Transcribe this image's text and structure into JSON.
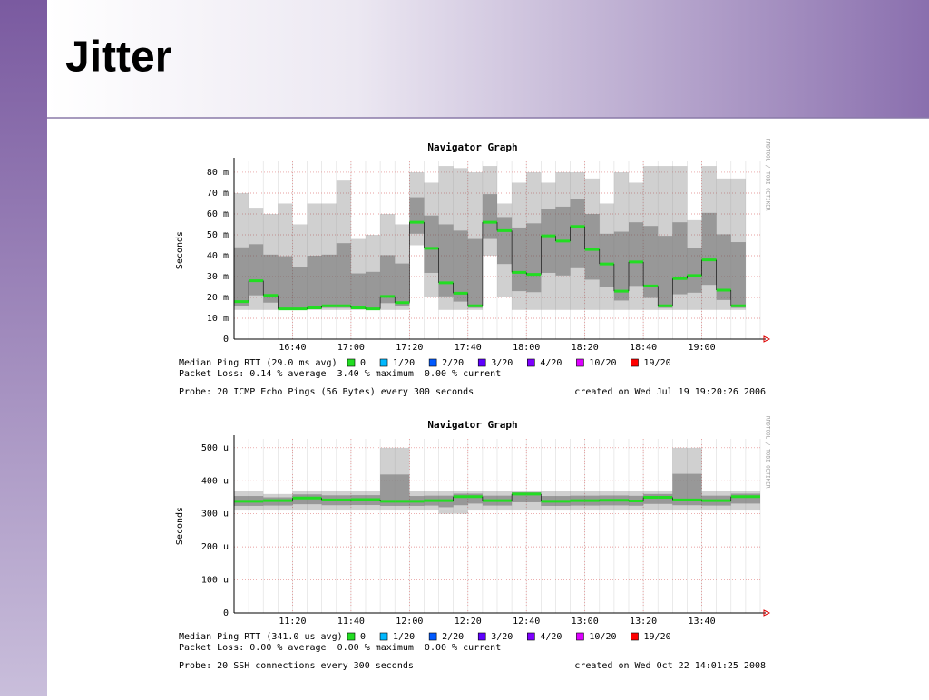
{
  "title": "Jitter",
  "chart_data": [
    {
      "type": "smoke",
      "title": "Navigator Graph",
      "y_label": "Seconds",
      "side_text": "RRDTOOL / TOBI OETIKER",
      "x": [
        "16:20",
        "16:25",
        "16:30",
        "16:35",
        "16:40",
        "16:45",
        "16:50",
        "16:55",
        "17:00",
        "17:05",
        "17:10",
        "17:15",
        "17:20",
        "17:25",
        "17:30",
        "17:35",
        "17:40",
        "17:45",
        "17:50",
        "17:55",
        "18:00",
        "18:05",
        "18:10",
        "18:15",
        "18:20",
        "18:25",
        "18:30",
        "18:35",
        "18:40",
        "18:45",
        "18:50",
        "18:55",
        "19:00",
        "19:05",
        "19:10"
      ],
      "series": [
        {
          "name": "Median Ping RTT (29.0 ms avg)",
          "color": "#22dd22",
          "values": [
            0.018,
            0.028,
            0.021,
            0.0145,
            0.0145,
            0.015,
            0.016,
            0.016,
            0.015,
            0.0145,
            0.0205,
            0.0175,
            0.056,
            0.0435,
            0.027,
            0.022,
            0.016,
            0.056,
            0.052,
            0.032,
            0.031,
            0.0495,
            0.047,
            0.054,
            0.043,
            0.036,
            0.023,
            0.037,
            0.0255,
            0.016,
            0.029,
            0.0305,
            0.038,
            0.0235,
            0.016
          ]
        }
      ],
      "smoke_max": [
        0.07,
        0.063,
        0.06,
        0.065,
        0.055,
        0.065,
        0.065,
        0.076,
        0.048,
        0.05,
        0.06,
        0.055,
        0.08,
        0.075,
        0.083,
        0.082,
        0.08,
        0.083,
        0.065,
        0.075,
        0.08,
        0.075,
        0.08,
        0.08,
        0.077,
        0.065,
        0.08,
        0.075,
        0.083,
        0.083,
        0.083,
        0.057,
        0.083,
        0.077,
        0.077
      ],
      "smoke_min": [
        0.014,
        0.014,
        0.014,
        0.014,
        0.014,
        0.014,
        0.014,
        0.014,
        0.014,
        0.014,
        0.014,
        0.014,
        0.045,
        0.02,
        0.014,
        0.014,
        0.014,
        0.04,
        0.02,
        0.014,
        0.014,
        0.014,
        0.014,
        0.014,
        0.014,
        0.014,
        0.014,
        0.014,
        0.014,
        0.014,
        0.014,
        0.014,
        0.014,
        0.014,
        0.014
      ],
      "xlim": [
        "16:20",
        "19:20"
      ],
      "xticks": [
        "16:40",
        "17:00",
        "17:20",
        "17:40",
        "18:00",
        "18:20",
        "18:40",
        "19:00"
      ],
      "ylim": [
        0,
        0.0852
      ],
      "yticks": [
        0,
        {
          "value": 0.01,
          "label": "10 m"
        },
        {
          "value": 0.02,
          "label": "20 m"
        },
        {
          "value": 0.03,
          "label": "30 m"
        },
        {
          "value": 0.04,
          "label": "40 m"
        },
        {
          "value": 0.05,
          "label": "50 m"
        },
        {
          "value": 0.06,
          "label": "60 m"
        },
        {
          "value": 0.07,
          "label": "70 m"
        },
        {
          "value": 0.08,
          "label": "80 m"
        }
      ],
      "loss_legend": [
        {
          "label": "0",
          "color": "#22dd22"
        },
        {
          "label": "1/20",
          "color": "#00b8ff"
        },
        {
          "label": "2/20",
          "color": "#0059ff"
        },
        {
          "label": "3/20",
          "color": "#5e00ff"
        },
        {
          "label": "4/20",
          "color": "#7e00ff"
        },
        {
          "label": "10/20",
          "color": "#dd00ff"
        },
        {
          "label": "19/20",
          "color": "#ff0000"
        }
      ],
      "packet_loss": "Packet Loss: 0.14 % average  3.40 % maximum  0.00 % current",
      "probe": "Probe: 20 ICMP Echo Pings (56 Bytes) every 300 seconds",
      "created": "created on Wed Jul 19 19:20:26 2006"
    },
    {
      "type": "smoke",
      "title": "Navigator Graph",
      "y_label": "Seconds",
      "side_text": "RRDTOOL / TOBI OETIKER",
      "x": [
        "11:00",
        "11:05",
        "11:10",
        "11:15",
        "11:20",
        "11:25",
        "11:30",
        "11:35",
        "11:40",
        "11:45",
        "11:50",
        "11:55",
        "12:00",
        "12:05",
        "12:10",
        "12:15",
        "12:20",
        "12:25",
        "12:30",
        "12:35",
        "12:40",
        "12:45",
        "12:50",
        "12:55",
        "13:00",
        "13:05",
        "13:10",
        "13:15",
        "13:20",
        "13:25",
        "13:30",
        "13:35",
        "13:40",
        "13:45",
        "13:50",
        "13:55"
      ],
      "series": [
        {
          "name": "Median Ping RTT (341.0 us avg)",
          "color": "#22dd22",
          "values": [
            0.000338,
            0.000338,
            0.00034,
            0.00034,
            0.000348,
            0.000348,
            0.000342,
            0.000342,
            0.000343,
            0.000343,
            0.000338,
            0.000338,
            0.000338,
            0.00034,
            0.00034,
            0.000352,
            0.000352,
            0.00034,
            0.00034,
            0.00036,
            0.00036,
            0.000338,
            0.000338,
            0.00034,
            0.00034,
            0.000341,
            0.000341,
            0.000339,
            0.00035,
            0.00035,
            0.000342,
            0.000342,
            0.00034,
            0.00034,
            0.000352,
            0.000352
          ]
        }
      ],
      "smoke_max": [
        0.00037,
        0.00037,
        0.00036,
        0.00036,
        0.00037,
        0.00037,
        0.00037,
        0.00037,
        0.00037,
        0.00037,
        0.0005,
        0.0005,
        0.00037,
        0.00037,
        0.00037,
        0.00037,
        0.00037,
        0.00037,
        0.00037,
        0.00037,
        0.00037,
        0.00037,
        0.00037,
        0.00037,
        0.00037,
        0.00037,
        0.00037,
        0.00037,
        0.00037,
        0.00037,
        0.0005,
        0.0005,
        0.00037,
        0.00037,
        0.00037,
        0.00037
      ],
      "smoke_min": [
        0.00031,
        0.00031,
        0.00031,
        0.00031,
        0.00031,
        0.00031,
        0.00031,
        0.00031,
        0.00031,
        0.00031,
        0.00031,
        0.00031,
        0.00031,
        0.00031,
        0.0003,
        0.0003,
        0.00031,
        0.00031,
        0.00031,
        0.00031,
        0.00031,
        0.00031,
        0.00031,
        0.00031,
        0.00031,
        0.00031,
        0.00031,
        0.00031,
        0.00031,
        0.00031,
        0.00031,
        0.00031,
        0.00031,
        0.00031,
        0.00031,
        0.00031
      ],
      "xlim": [
        "11:00",
        "14:00"
      ],
      "xticks": [
        "11:20",
        "11:40",
        "12:00",
        "12:20",
        "12:40",
        "13:00",
        "13:20",
        "13:40"
      ],
      "ylim": [
        0,
        0.000527
      ],
      "yticks": [
        0,
        {
          "value": 0.0001,
          "label": "100 u"
        },
        {
          "value": 0.0002,
          "label": "200 u"
        },
        {
          "value": 0.0003,
          "label": "300 u"
        },
        {
          "value": 0.0004,
          "label": "400 u"
        },
        {
          "value": 0.0005,
          "label": "500 u"
        }
      ],
      "loss_legend": [
        {
          "label": "0",
          "color": "#22dd22"
        },
        {
          "label": "1/20",
          "color": "#00b8ff"
        },
        {
          "label": "2/20",
          "color": "#0059ff"
        },
        {
          "label": "3/20",
          "color": "#5e00ff"
        },
        {
          "label": "4/20",
          "color": "#7e00ff"
        },
        {
          "label": "10/20",
          "color": "#dd00ff"
        },
        {
          "label": "19/20",
          "color": "#ff0000"
        }
      ],
      "packet_loss": "Packet Loss: 0.00 % average  0.00 % maximum  0.00 % current",
      "probe": "Probe: 20 SSH connections every 300 seconds",
      "created": "created on Wed Oct 22 14:01:25 2008"
    }
  ]
}
